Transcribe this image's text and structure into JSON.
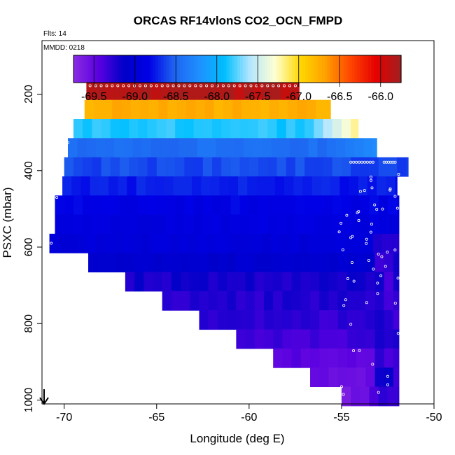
{
  "chart_data": {
    "type": "heatmap",
    "title": "ORCAS RF14vlonS CO2_OCN_FMPD",
    "flights_label": "Flts: 14",
    "date_label": "MMDD: 0218",
    "xlabel": "Longitude (deg E)",
    "ylabel": "PSXC (mbar)",
    "xlim": [
      -71.2,
      -50
    ],
    "ylim": [
      1010,
      60
    ],
    "y_reversed": true,
    "xticks": [
      -70,
      -65,
      -60,
      -55,
      -50
    ],
    "yticks": [
      200,
      400,
      600,
      800,
      1000
    ],
    "colorbar": {
      "range": [
        -69.75,
        -65.75
      ],
      "ticks": [
        -69.5,
        -69.0,
        -68.5,
        -68.0,
        -67.5,
        -67.0,
        -66.5,
        -66.0
      ],
      "colors": [
        "#8a2be2",
        "#5a00e0",
        "#0000c8",
        "#0000e6",
        "#1e64f0",
        "#1e90ff",
        "#00bfff",
        "#b4e6ff",
        "#ffffd2",
        "#ffd700",
        "#ffa000",
        "#ff4500",
        "#e60000",
        "#a02020"
      ]
    },
    "layers": [
      {
        "p": 190,
        "x": [
          -68.8,
          -57.3
        ],
        "v": -65.85
      },
      {
        "p": 240,
        "x": [
          -68.9,
          -55.6
        ],
        "v": -66.75
      },
      {
        "p": 290,
        "x": [
          -69.5,
          -54.1
        ],
        "v": -67.85
      },
      {
        "p": 340,
        "x": [
          -69.8,
          -53.1
        ],
        "v": -68.45
      },
      {
        "p": 390,
        "x": [
          -70.0,
          -51.4
        ],
        "v": -68.6
      },
      {
        "p": 440,
        "x": [
          -70.1,
          -52.0
        ],
        "v": -68.75
      },
      {
        "p": 490,
        "x": [
          -70.5,
          -51.9
        ],
        "v": -68.85
      },
      {
        "p": 540,
        "x": [
          -70.5,
          -51.9
        ],
        "v": -68.9
      },
      {
        "p": 590,
        "x": [
          -70.8,
          -51.9
        ],
        "v": -68.95
      },
      {
        "p": 640,
        "x": [
          -68.7,
          -51.9
        ],
        "v": -69.05
      },
      {
        "p": 690,
        "x": [
          -66.7,
          -51.9
        ],
        "v": -69.2
      },
      {
        "p": 740,
        "x": [
          -64.7,
          -51.9
        ],
        "v": -69.25
      },
      {
        "p": 790,
        "x": [
          -62.7,
          -51.9
        ],
        "v": -69.3
      },
      {
        "p": 840,
        "x": [
          -60.7,
          -51.9
        ],
        "v": -69.35
      },
      {
        "p": 890,
        "x": [
          -58.7,
          -51.9
        ],
        "v": -69.45
      },
      {
        "p": 940,
        "x": [
          -56.7,
          -51.9
        ],
        "v": -69.55
      },
      {
        "p": 990,
        "x": [
          -55.0,
          -51.9
        ],
        "v": -69.6
      }
    ]
  }
}
